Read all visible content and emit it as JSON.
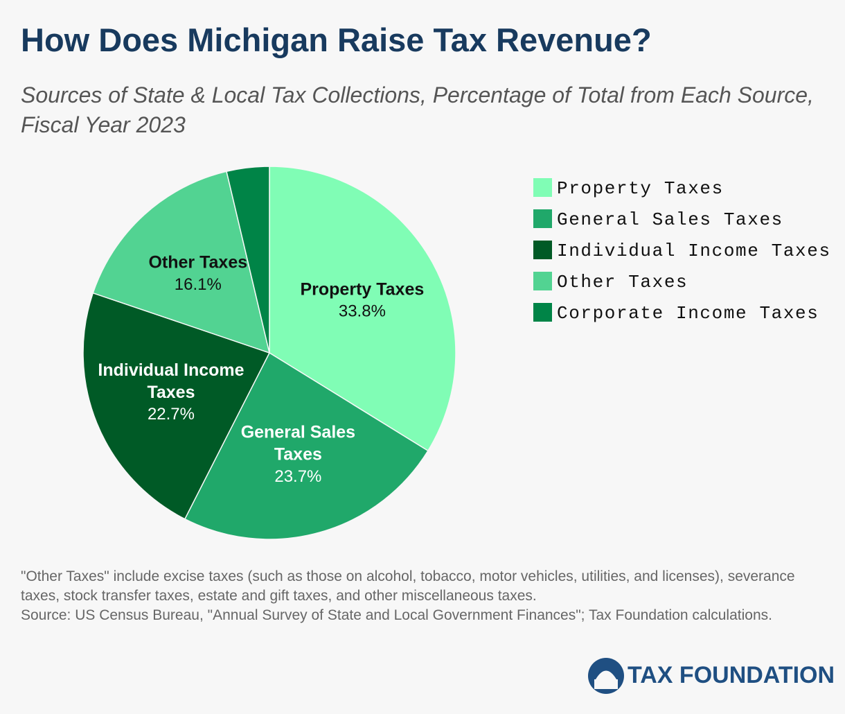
{
  "chart_data": {
    "type": "pie",
    "title": "How Does Michigan Raise Tax Revenue?",
    "subtitle": "Sources of State & Local Tax Collections, Percentage of Total from Each Source, Fiscal Year 2023",
    "categories": [
      "Property Taxes",
      "General Sales Taxes",
      "Individual Income Taxes",
      "Other Taxes",
      "Corporate Income Taxes"
    ],
    "values": [
      33.8,
      23.7,
      22.7,
      16.1,
      3.7
    ],
    "value_labels": [
      "33.8%",
      "23.7%",
      "22.7%",
      "16.1%",
      null
    ],
    "colors": [
      "#80fdb5",
      "#20a86a",
      "#005a26",
      "#52d392",
      "#008447"
    ],
    "legend": "right",
    "note": "\"Other Taxes\" include excise taxes (such as those on alcohol, tobacco, motor vehicles, utilities, and licenses), severance taxes, stock transfer taxes, estate and gift taxes, and other miscellaneous taxes.",
    "source": "Source: US Census Bureau, \"Annual Survey of State and Local Government Finances\"; Tax Foundation calculations.",
    "logo": "TAX FOUNDATION"
  }
}
